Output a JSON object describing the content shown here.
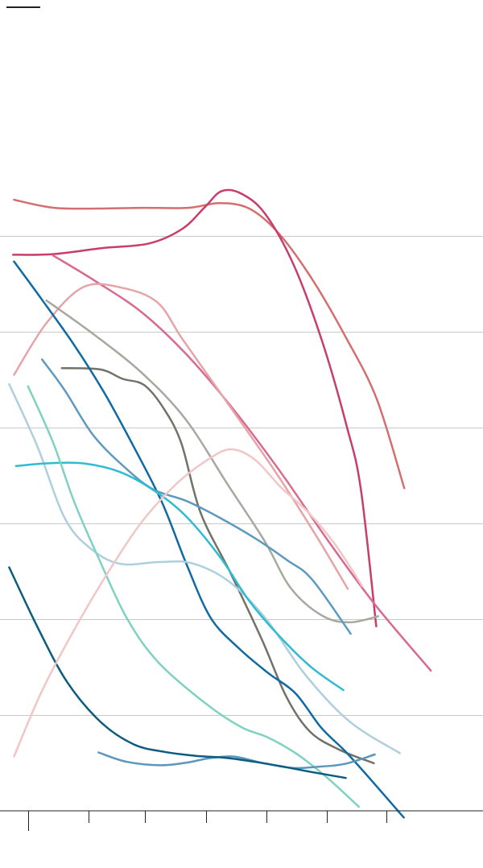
{
  "chart_data": {
    "type": "line",
    "title": "",
    "xlabel": "",
    "ylabel": "",
    "grid": true,
    "axis_ranges": {
      "x": [
        0,
        100
      ],
      "y": [
        0,
        100
      ]
    },
    "gridline_values": [
      85.7,
      71.4,
      57.1,
      42.9,
      28.6,
      14.3
    ],
    "x_ticks": [
      5.8,
      18.4,
      30.0,
      42.6,
      55.1,
      67.7,
      80.0
    ],
    "legend_key_color": "#222222",
    "series": [
      {
        "color": "#d46f70",
        "x": [
          2.9,
          11.2,
          20.4,
          29.6,
          39.0,
          45.4,
          51.6,
          57.7,
          64.5,
          71.6,
          78.0,
          83.7
        ],
        "y": [
          91.1,
          89.9,
          89.8,
          89.9,
          89.9,
          90.6,
          89.8,
          86.1,
          79.4,
          70.6,
          61.4,
          48.1
        ]
      },
      {
        "color": "#c83d6b",
        "x": [
          2.7,
          11.0,
          21.2,
          30.9,
          37.8,
          42.4,
          45.9,
          50.0,
          54.9,
          60.8,
          66.7,
          71.8,
          74.7,
          77.9
        ],
        "y": [
          82.9,
          83.0,
          83.9,
          84.6,
          86.8,
          90.0,
          92.4,
          92.0,
          89.0,
          81.4,
          70.0,
          57.3,
          48.0,
          27.5
        ]
      },
      {
        "color": "#d86a92",
        "x": [
          11.0,
          19.7,
          29.4,
          38.8,
          48.6,
          58.2,
          67.7,
          77.7,
          89.2
        ],
        "y": [
          82.8,
          79.0,
          74.3,
          67.9,
          59.6,
          50.4,
          40.5,
          30.7,
          20.9
        ]
      },
      {
        "color": "#e5a5a8",
        "x": [
          2.9,
          9.6,
          17.3,
          25.2,
          32.6,
          37.8,
          46.7,
          56.6,
          65.3,
          72.0
        ],
        "y": [
          65.0,
          72.7,
          78.1,
          78.0,
          75.8,
          70.3,
          61.2,
          51.0,
          41.2,
          33.1
        ]
      },
      {
        "color": "#a8a7a0",
        "x": [
          9.6,
          19.3,
          29.2,
          38.4,
          47.1,
          54.8,
          60.2,
          66.7,
          72.3,
          78.3
        ],
        "y": [
          76.1,
          71.1,
          65.4,
          58.4,
          48.7,
          40.2,
          33.2,
          29.1,
          28.1,
          29.0
        ]
      },
      {
        "color": "#72716a",
        "x": [
          12.8,
          20.8,
          25.4,
          29.8,
          33.7,
          37.5,
          41.5,
          47.7,
          54.3,
          59.3,
          64.2,
          70.3,
          77.4
        ],
        "y": [
          66.0,
          65.8,
          64.4,
          63.5,
          60.2,
          54.9,
          44.5,
          35.5,
          25.4,
          17.0,
          11.8,
          9.1,
          7.1
        ]
      },
      {
        "color": "#0f6aa3",
        "x": [
          2.9,
          8.7,
          15.4,
          21.7,
          27.9,
          33.6,
          38.6,
          43.6,
          49.5,
          55.6,
          61.2,
          66.5,
          71.6,
          76.7,
          83.6
        ],
        "y": [
          81.9,
          76.2,
          69.4,
          62.2,
          54.0,
          45.9,
          36.8,
          28.8,
          24.2,
          20.5,
          17.5,
          12.4,
          8.8,
          4.7,
          -1.0
        ]
      },
      {
        "color": "#5c9ac0",
        "x": [
          8.7,
          13.4,
          19.3,
          26.0,
          31.8,
          38.6,
          45.5,
          52.9,
          59.4,
          64.6,
          72.6
        ],
        "y": [
          67.3,
          62.7,
          56.0,
          51.1,
          47.9,
          46.2,
          43.7,
          40.6,
          37.4,
          34.5,
          26.4
        ]
      },
      {
        "color": "#aecfdd",
        "x": [
          1.9,
          7.7,
          13.5,
          19.3,
          25.2,
          33.0,
          39.8,
          47.4,
          55.1,
          63.2,
          72.4,
          82.8
        ],
        "y": [
          63.6,
          54.4,
          43.5,
          38.8,
          36.8,
          37.1,
          36.9,
          34.2,
          28.6,
          20.3,
          13.3,
          8.6
        ]
      },
      {
        "color": "#2ebcd0",
        "x": [
          3.3,
          9.6,
          17.3,
          24.9,
          31.8,
          38.4,
          45.5,
          51.6,
          57.5,
          64.3,
          71.1
        ],
        "y": [
          51.4,
          51.8,
          51.8,
          50.5,
          47.8,
          44.0,
          37.9,
          31.3,
          26.3,
          21.5,
          18.0
        ]
      },
      {
        "color": "#7fd2c2",
        "x": [
          5.8,
          11.0,
          15.4,
          20.4,
          26.2,
          32.7,
          42.4,
          49.9,
          55.6,
          61.4,
          67.8,
          74.3
        ],
        "y": [
          63.3,
          54.9,
          46.0,
          37.7,
          28.8,
          22.2,
          16.1,
          12.5,
          10.9,
          8.5,
          4.9,
          0.6
        ]
      },
      {
        "color": "#5b96bd",
        "x": [
          20.4,
          26.3,
          33.3,
          38.8,
          43.0,
          48.3,
          54.6,
          60.6,
          66.4,
          71.4,
          77.6
        ],
        "y": [
          8.7,
          7.3,
          6.8,
          7.2,
          7.8,
          8.1,
          7.1,
          6.4,
          6.6,
          7.0,
          8.4
        ]
      },
      {
        "color": "#0d5c80",
        "x": [
          1.9,
          7.9,
          13.9,
          20.9,
          27.7,
          34.0,
          40.5,
          46.8,
          52.8,
          58.5,
          64.4,
          71.6
        ],
        "y": [
          36.3,
          27.2,
          19.2,
          13.2,
          9.9,
          8.8,
          8.2,
          7.9,
          7.3,
          6.6,
          5.8,
          4.9
        ]
      },
      {
        "color": "#f0c6c7",
        "x": [
          2.9,
          8.7,
          15.6,
          22.5,
          29.5,
          36.6,
          42.7,
          47.7,
          52.7,
          58.2,
          63.7,
          69.4,
          75.0
        ],
        "y": [
          8.1,
          17.9,
          27.3,
          35.7,
          43.2,
          48.8,
          52.2,
          53.9,
          52.4,
          48.2,
          44.6,
          39.7,
          33.5
        ]
      }
    ]
  }
}
